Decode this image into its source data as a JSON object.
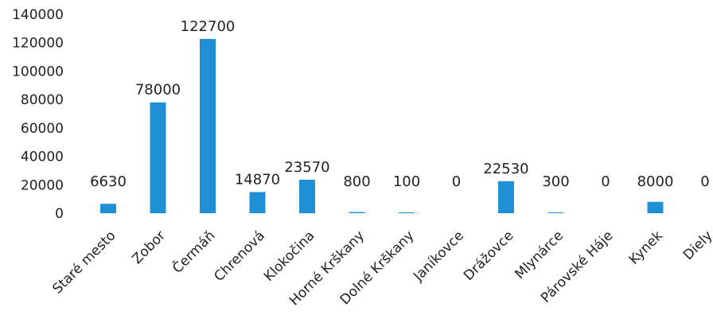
{
  "chart_data": {
    "type": "bar",
    "categories": [
      "Staré mesto",
      "Zobor",
      "Čermáň",
      "Chrenová",
      "Klokočina",
      "Horné Krškany",
      "Dolné Krškany",
      "Janíkovce",
      "Drážovce",
      "Mlynárce",
      "Párovské Háje",
      "Kynek",
      "Diely"
    ],
    "values": [
      6630,
      78000,
      122700,
      14870,
      23570,
      800,
      100,
      0,
      22530,
      300,
      0,
      8000,
      0
    ],
    "data_labels": [
      "6630",
      "78000",
      "122700",
      "14870",
      "23570",
      "800",
      "100",
      "0",
      "22530",
      "300",
      "0",
      "8000",
      "0"
    ],
    "y_ticks": [
      "0",
      "20000",
      "40000",
      "60000",
      "80000",
      "100000",
      "120000",
      "140000"
    ],
    "ylim": [
      0,
      140000
    ],
    "title": "",
    "xlabel": "",
    "ylabel": "",
    "grid": false,
    "bar_color": "#1f8fd6"
  }
}
